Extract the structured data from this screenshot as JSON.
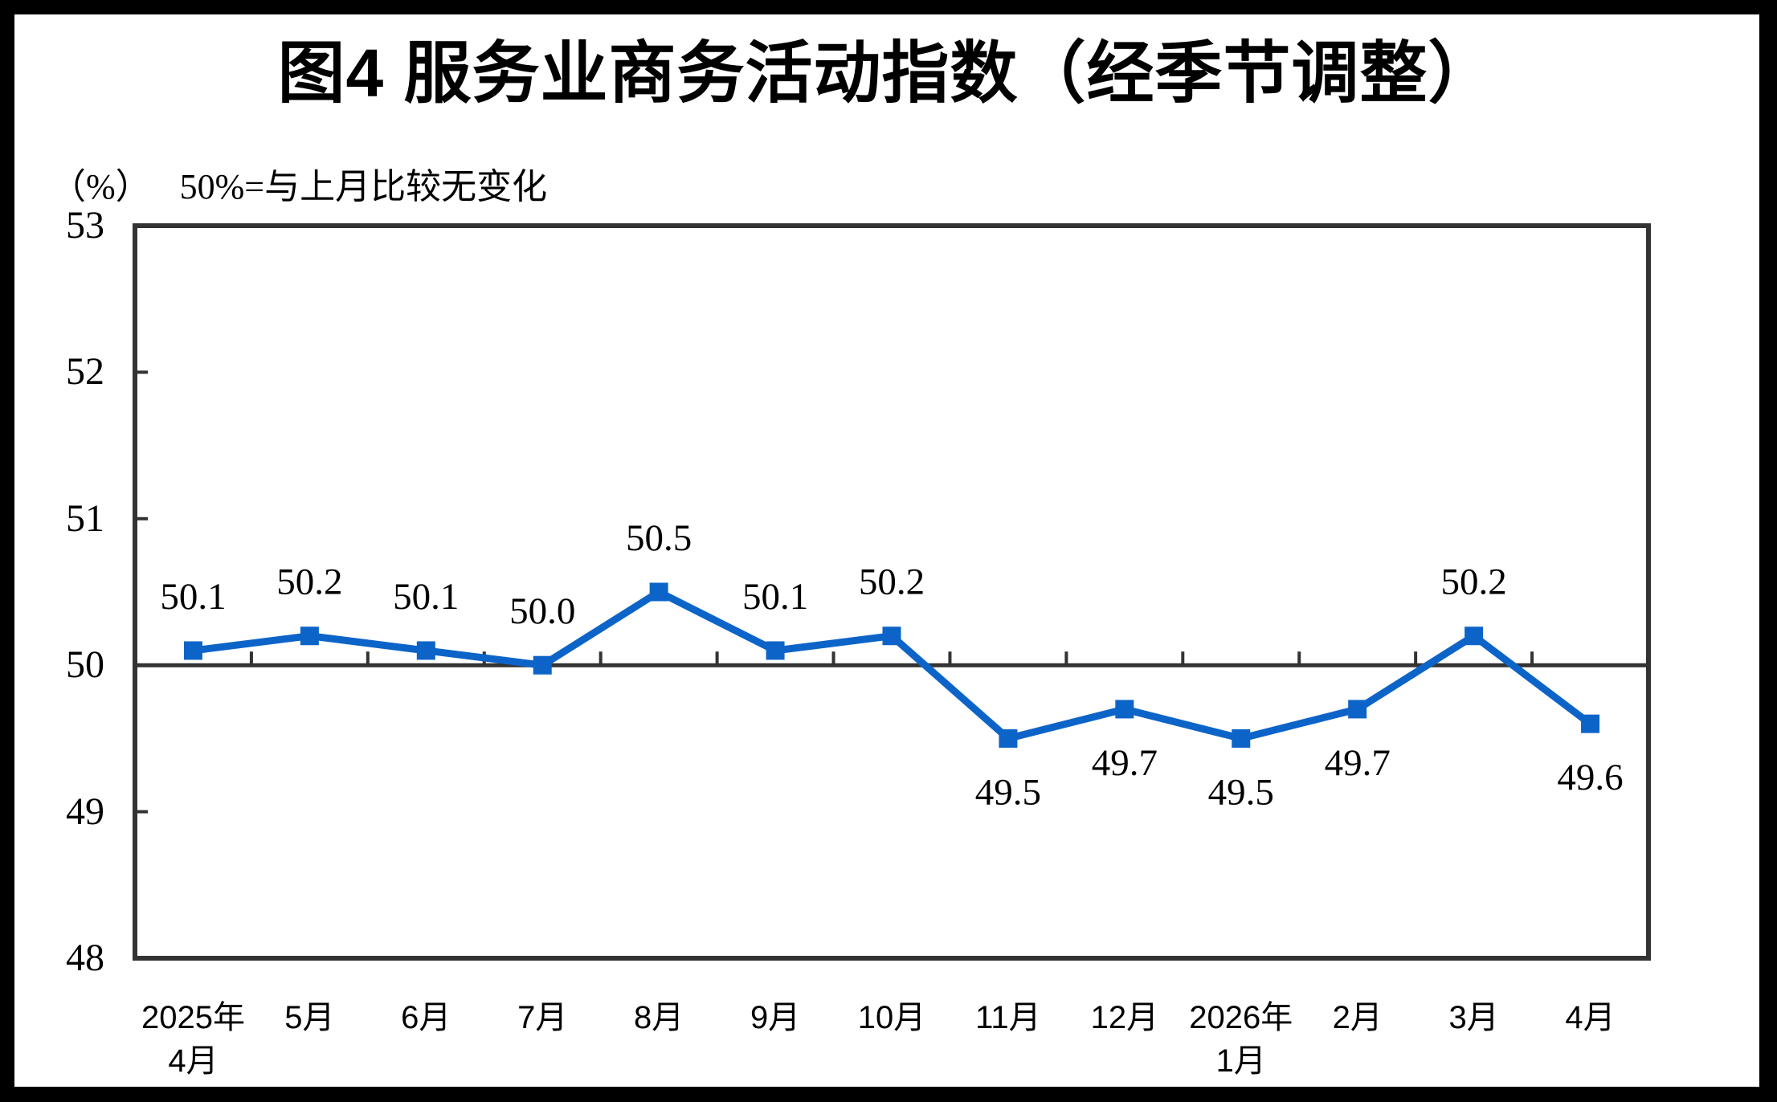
{
  "chart_data": {
    "type": "line",
    "title": "图4 服务业商务活动指数（经季节调整）",
    "unit_label": "（%）",
    "note": "50%=与上月比较无变化",
    "categories": [
      [
        "2025年",
        "4月"
      ],
      [
        "5月"
      ],
      [
        "6月"
      ],
      [
        "7月"
      ],
      [
        "8月"
      ],
      [
        "9月"
      ],
      [
        "10月"
      ],
      [
        "11月"
      ],
      [
        "12月"
      ],
      [
        "2026年",
        "1月"
      ],
      [
        "2月"
      ],
      [
        "3月"
      ],
      [
        "4月"
      ]
    ],
    "values": [
      50.1,
      50.2,
      50.1,
      50.0,
      50.5,
      50.1,
      50.2,
      49.5,
      49.7,
      49.5,
      49.7,
      50.2,
      49.6
    ],
    "data_labels": [
      "50.1",
      "50.2",
      "50.1",
      "50.0",
      "50.5",
      "50.1",
      "50.2",
      "49.5",
      "49.7",
      "49.5",
      "49.7",
      "50.2",
      "49.6"
    ],
    "ylim": [
      48,
      53
    ],
    "y_ticks": [
      53,
      52,
      51,
      50,
      49,
      48
    ],
    "axis_cross_value": 50,
    "grid": false,
    "legend": "none",
    "colors": {
      "line": "#0D64C8",
      "axis": "#333333",
      "text": "#000000",
      "background": "#FFFFFF",
      "frame": "#000000"
    }
  }
}
